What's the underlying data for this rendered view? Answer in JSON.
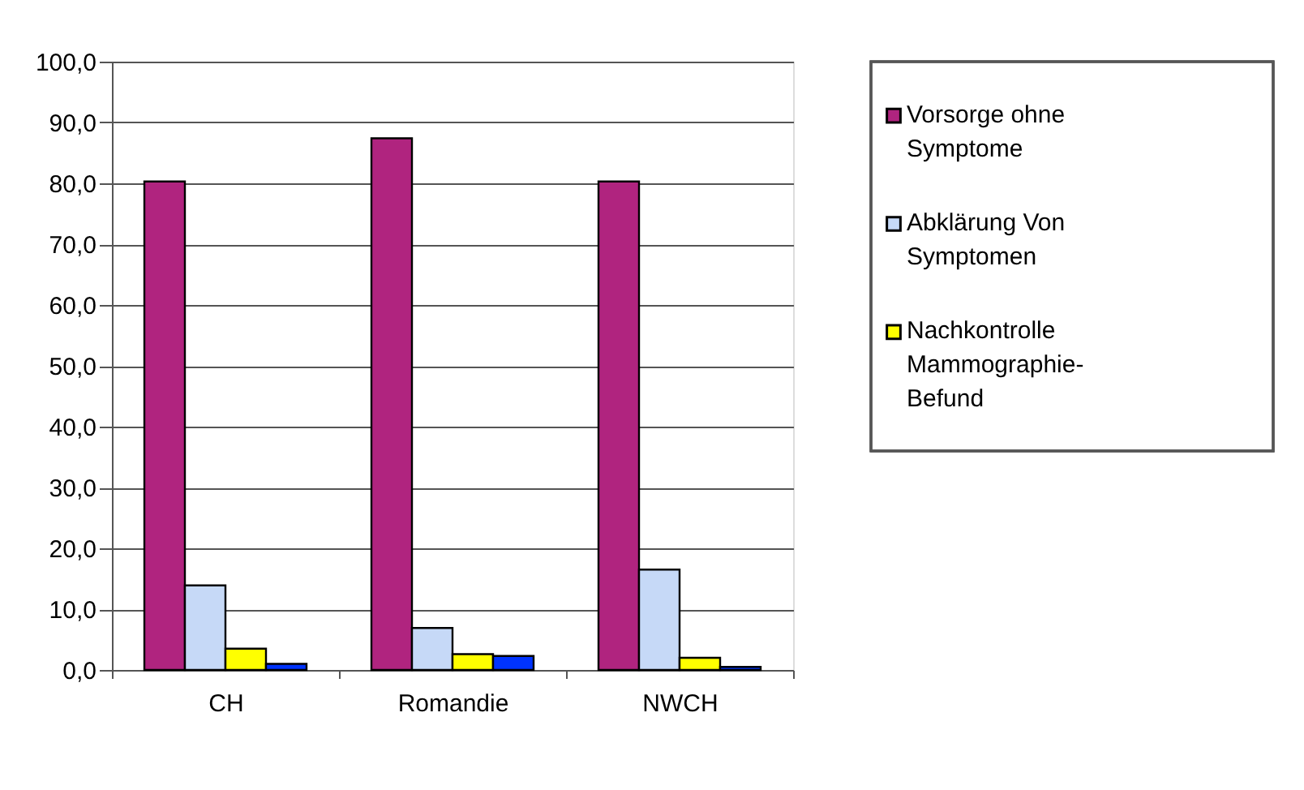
{
  "chart_data": {
    "type": "bar",
    "categories": [
      "CH",
      "Romandie",
      "NWCH"
    ],
    "series": [
      {
        "name": "Vorsorge ohne Symptome",
        "color": "#b0247f",
        "values": [
          80.3,
          87.4,
          80.3
        ]
      },
      {
        "name": "Abklärung Von Symptomen",
        "color": "#c6d9f7",
        "values": [
          13.9,
          6.9,
          16.5
        ]
      },
      {
        "name": "Nachkontrolle Mammographie-Befund",
        "color": "#ffff00",
        "values": [
          3.5,
          2.6,
          2.0
        ]
      },
      {
        "color": "#0033ff",
        "values": [
          1.0,
          2.3,
          0.5
        ]
      }
    ],
    "ylim": [
      0,
      100
    ],
    "yticks": [
      {
        "value": 0,
        "label": "0,0"
      },
      {
        "value": 10,
        "label": "10,0"
      },
      {
        "value": 20,
        "label": "20,0"
      },
      {
        "value": 30,
        "label": "30,0"
      },
      {
        "value": 40,
        "label": "40,0"
      },
      {
        "value": 50,
        "label": "50,0"
      },
      {
        "value": 60,
        "label": "60,0"
      },
      {
        "value": 70,
        "label": "70,0"
      },
      {
        "value": 80,
        "label": "80,0"
      },
      {
        "value": 90,
        "label": "90,0"
      },
      {
        "value": 100,
        "label": "100,0"
      }
    ],
    "grid": "y",
    "legend": "right"
  }
}
